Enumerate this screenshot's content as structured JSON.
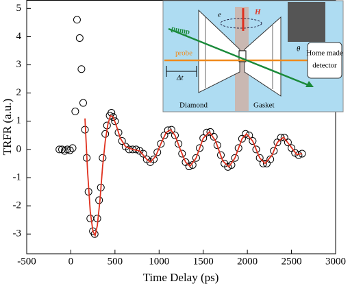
{
  "chart_data": {
    "type": "scatter",
    "x_label": "Time Delay (ps)",
    "y_label": "TRFR (a.u.)",
    "xlim": [
      -500,
      3000
    ],
    "xticks": [
      -500,
      0,
      500,
      1000,
      1500,
      2000,
      2500,
      3000
    ],
    "ylim": [
      -3.7,
      5.3
    ],
    "yticks": [
      -3,
      -2,
      -1,
      0,
      1,
      2,
      3,
      4,
      5
    ],
    "series": [
      {
        "marker": "open-circle",
        "color": "#000000",
        "x": [
          -130,
          -100,
          -70,
          -40,
          -10,
          20,
          50,
          70,
          100,
          120,
          140,
          160,
          180,
          200,
          220,
          250,
          270,
          300,
          320,
          340,
          360,
          390,
          410,
          440,
          460,
          480,
          500,
          540,
          580,
          620,
          660,
          700,
          740,
          780,
          820,
          860,
          900,
          940,
          980,
          1020,
          1060,
          1100,
          1140,
          1180,
          1220,
          1260,
          1300,
          1340,
          1380,
          1420,
          1460,
          1500,
          1540,
          1580,
          1620,
          1660,
          1700,
          1740,
          1780,
          1820,
          1860,
          1900,
          1940,
          1980,
          2020,
          2060,
          2100,
          2140,
          2180,
          2220,
          2260,
          2300,
          2340,
          2380,
          2420,
          2460,
          2500,
          2540,
          2580,
          2620
        ],
        "values": [
          0,
          0,
          -0.05,
          0,
          -0.03,
          0.05,
          1.35,
          4.6,
          3.95,
          2.85,
          1.65,
          0.7,
          -0.3,
          -1.5,
          -2.45,
          -2.9,
          -3.0,
          -2.45,
          -1.8,
          -1.35,
          -0.3,
          0.55,
          0.85,
          1.2,
          1.3,
          1.15,
          1.0,
          0.6,
          0.3,
          0.1,
          0,
          0,
          0,
          -0.05,
          -0.15,
          -0.35,
          -0.45,
          -0.35,
          -0.1,
          0.2,
          0.5,
          0.68,
          0.7,
          0.5,
          0.2,
          -0.15,
          -0.45,
          -0.6,
          -0.55,
          -0.3,
          0.05,
          0.4,
          0.6,
          0.62,
          0.45,
          0.15,
          -0.2,
          -0.5,
          -0.62,
          -0.55,
          -0.3,
          0.05,
          0.38,
          0.55,
          0.5,
          0.3,
          0,
          -0.3,
          -0.5,
          -0.5,
          -0.35,
          -0.05,
          0.25,
          0.42,
          0.42,
          0.25,
          0.05,
          -0.12,
          -0.2,
          -0.15
        ]
      },
      {
        "marker": "line",
        "color": "#e0301e",
        "x": [
          160,
          190,
          220,
          250,
          275,
          300,
          330,
          360,
          390,
          420,
          450,
          480,
          520,
          560,
          620,
          700,
          780,
          860,
          900,
          960,
          1020,
          1080,
          1130,
          1180,
          1240,
          1300,
          1350,
          1420,
          1500,
          1570,
          1640,
          1720,
          1790,
          1860,
          1940,
          1990,
          2060,
          2140,
          2200,
          2280,
          2340,
          2410,
          2480,
          2560,
          2620
        ],
        "values": [
          1.1,
          -0.8,
          -2.2,
          -2.9,
          -3.05,
          -2.7,
          -1.8,
          -0.6,
          0.3,
          0.9,
          1.2,
          1.15,
          0.8,
          0.4,
          0.1,
          0,
          -0.05,
          -0.35,
          -0.45,
          -0.25,
          0.2,
          0.6,
          0.7,
          0.5,
          0,
          -0.45,
          -0.6,
          -0.3,
          0.4,
          0.62,
          0.3,
          -0.4,
          -0.62,
          -0.3,
          0.38,
          0.55,
          0.3,
          -0.3,
          -0.5,
          -0.2,
          0.25,
          0.43,
          0.15,
          -0.18,
          -0.15
        ]
      }
    ],
    "inset": {
      "labels": [
        "e",
        "H",
        "pump",
        "probe",
        "Δt",
        "θ",
        "Home made",
        "detector",
        "Diamond",
        "Gasket"
      ]
    }
  }
}
